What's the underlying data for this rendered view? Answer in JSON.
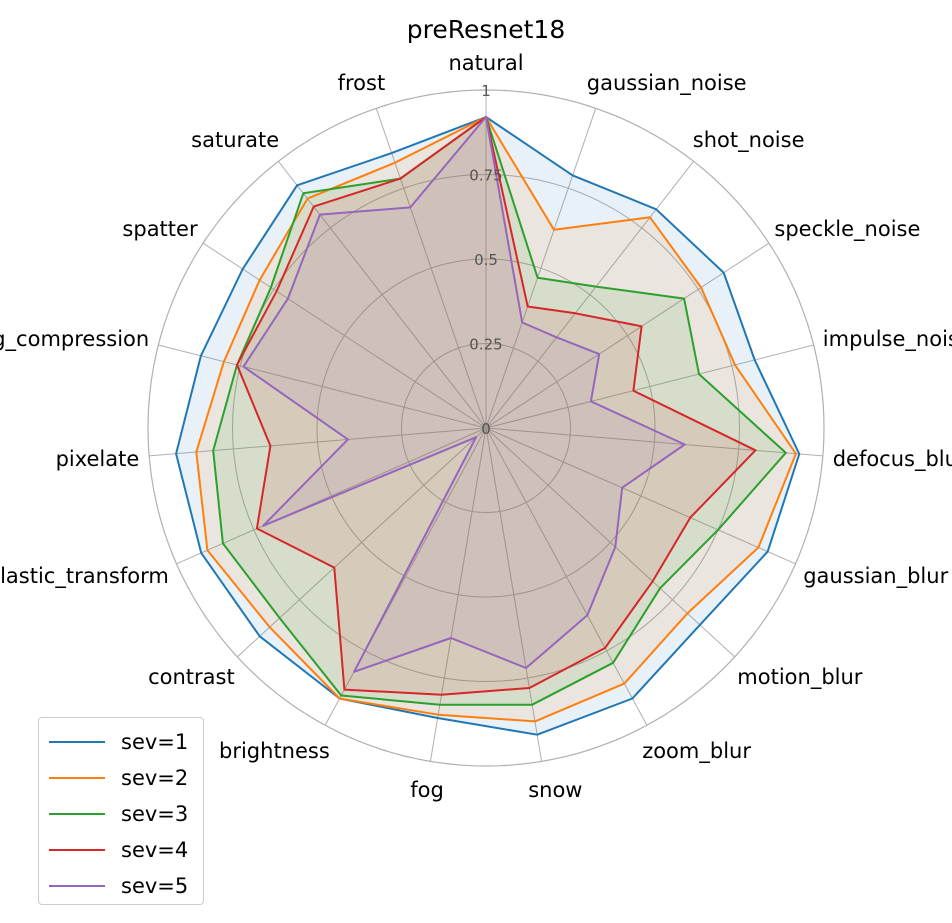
{
  "chart_data": {
    "type": "radar",
    "title": "preResnet18",
    "categories": [
      "natural",
      "gaussian_noise",
      "shot_noise",
      "speckle_noise",
      "impulse_noise",
      "defocus_blur",
      "gaussian_blur",
      "motion_blur",
      "zoom_blur",
      "snow",
      "fog",
      "brightness",
      "contrast",
      "elastic_transform",
      "pixelate",
      "jpeg_compression",
      "spatter",
      "saturate",
      "frost"
    ],
    "rlim": [
      0,
      1
    ],
    "rticks": [
      0,
      0.25,
      0.5,
      0.75,
      1
    ],
    "rtick_labels": [
      "0",
      "0.25",
      "0.5",
      "0.75",
      "1"
    ],
    "grid": true,
    "legend_position": "bottom-left",
    "series": [
      {
        "name": "sev=1",
        "color": "#1f77b4",
        "values": [
          0.92,
          0.79,
          0.82,
          0.84,
          0.82,
          0.93,
          0.91,
          0.86,
          0.91,
          0.92,
          0.87,
          0.91,
          0.91,
          0.92,
          0.92,
          0.87,
          0.86,
          0.91,
          0.86
        ]
      },
      {
        "name": "sev=2",
        "color": "#ff7f0e",
        "values": [
          0.92,
          0.62,
          0.79,
          0.76,
          0.76,
          0.92,
          0.88,
          0.81,
          0.86,
          0.88,
          0.86,
          0.91,
          0.87,
          0.9,
          0.86,
          0.8,
          0.8,
          0.86,
          0.83
        ]
      },
      {
        "name": "sev=3",
        "color": "#2ca02c",
        "values": [
          0.92,
          0.47,
          0.53,
          0.7,
          0.65,
          0.89,
          0.75,
          0.7,
          0.79,
          0.83,
          0.83,
          0.9,
          0.83,
          0.85,
          0.81,
          0.76,
          0.76,
          0.88,
          0.78
        ]
      },
      {
        "name": "sev=4",
        "color": "#d62728",
        "values": [
          0.92,
          0.38,
          0.43,
          0.55,
          0.45,
          0.8,
          0.66,
          0.67,
          0.74,
          0.78,
          0.8,
          0.88,
          0.61,
          0.74,
          0.64,
          0.76,
          0.74,
          0.83,
          0.78
        ]
      },
      {
        "name": "sev=5",
        "color": "#9467bd",
        "values": [
          0.92,
          0.33,
          0.34,
          0.4,
          0.32,
          0.59,
          0.44,
          0.52,
          0.63,
          0.72,
          0.63,
          0.82,
          0.04,
          0.72,
          0.41,
          0.74,
          0.7,
          0.8,
          0.69
        ]
      }
    ]
  }
}
